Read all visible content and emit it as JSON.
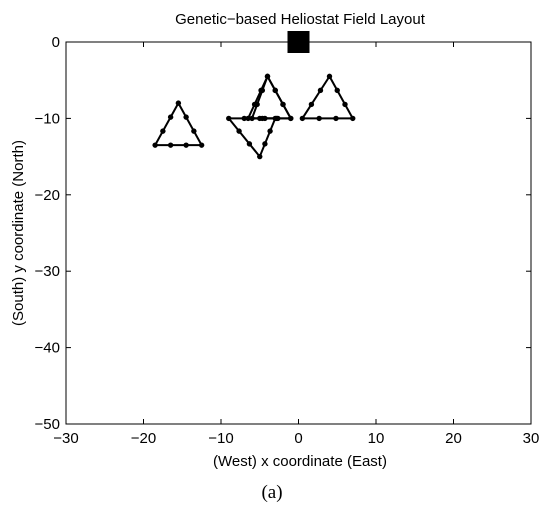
{
  "chart_data": {
    "type": "scatter",
    "title": "Genetic−based Heliostat Field Layout",
    "xlabel": "(West) x coordinate (East)",
    "ylabel": "(South) y coordinate (North)",
    "caption": "(a)",
    "xlim": [
      -30,
      30
    ],
    "ylim": [
      -50,
      0
    ],
    "xticks": [
      -30,
      -20,
      -10,
      0,
      10,
      20,
      30
    ],
    "yticks": [
      0,
      -10,
      -20,
      -30,
      -40,
      -50
    ],
    "xtick_labels": [
      "−30",
      "−20",
      "−10",
      "0",
      "10",
      "20",
      "30"
    ],
    "ytick_labels": [
      "0",
      "−10",
      "−20",
      "−30",
      "−40",
      "−50"
    ],
    "grid": false,
    "tower": {
      "x": 0,
      "y": 0
    },
    "triangles": [
      [
        [
          -15.5,
          -8
        ],
        [
          -18.5,
          -13.5
        ],
        [
          -12.5,
          -13.5
        ]
      ],
      [
        [
          -9,
          -10
        ],
        [
          -3,
          -10
        ],
        [
          -5,
          -15
        ]
      ],
      [
        [
          -4,
          -4.5
        ],
        [
          -1,
          -10
        ],
        [
          -6,
          -10
        ]
      ],
      [
        [
          -4,
          -4.5
        ],
        [
          -1,
          -10
        ],
        [
          -6.5,
          -10
        ]
      ],
      [
        [
          4,
          -4.5
        ],
        [
          0.5,
          -10
        ],
        [
          7,
          -10
        ]
      ]
    ]
  }
}
